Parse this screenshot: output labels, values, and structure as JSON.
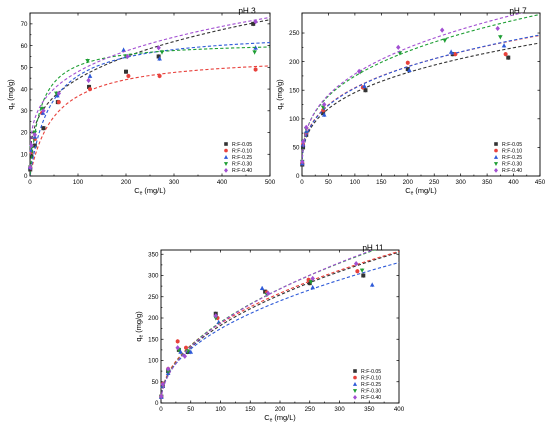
{
  "colors": {
    "R:F-0.05": "#333333",
    "R:F-0.10": "#e8413c",
    "R:F-0.25": "#2e5ad8",
    "R:F-0.30": "#1e9e34",
    "R:F-0.40": "#a24fd2"
  },
  "marker_shapes": {
    "R:F-0.05": "square",
    "R:F-0.10": "circle",
    "R:F-0.25": "triangle-up",
    "R:F-0.30": "triangle-down",
    "R:F-0.40": "diamond"
  },
  "chart_data": [
    {
      "type": "scatter",
      "title": "pH 3",
      "xlabel": {
        "main": "C",
        "sub": "e",
        "unit": " (mg/L)"
      },
      "ylabel": {
        "main": "q",
        "sub": "e",
        "unit": " (mg/g)"
      },
      "xlim": [
        0,
        500
      ],
      "ylim": [
        0,
        75
      ],
      "xticks": [
        0,
        100,
        200,
        300,
        400,
        500
      ],
      "yticks": [
        0,
        10,
        20,
        30,
        40,
        50,
        60,
        70
      ],
      "legend_position": "bottom-right",
      "fit_lines": "dashed",
      "series": [
        {
          "name": "R:F-0.05",
          "x": [
            0.5,
            3,
            10,
            28,
            58,
            123,
            200,
            268,
            465
          ],
          "y": [
            3,
            9,
            14,
            22,
            34,
            41,
            48,
            55,
            70
          ],
          "fit": {
            "model": "freundlich",
            "k": 11.5,
            "n": 0.295
          }
        },
        {
          "name": "R:F-0.10",
          "x": [
            0.5,
            3,
            10,
            25,
            60,
            125,
            205,
            270,
            470
          ],
          "y": [
            4,
            11,
            17,
            29,
            34,
            40,
            46,
            46,
            49
          ],
          "fit": {
            "model": "langmuir",
            "qm": 56,
            "kl": 0.019
          }
        },
        {
          "name": "R:F-0.25",
          "x": [
            0.5,
            3,
            10,
            27,
            57,
            125,
            195,
            270,
            470
          ],
          "y": [
            4,
            12,
            18,
            29,
            37,
            46,
            58,
            54,
            59
          ],
          "fit": {
            "model": "langmuir",
            "qm": 67,
            "kl": 0.022
          }
        },
        {
          "name": "R:F-0.30",
          "x": [
            0.5,
            3,
            10,
            25,
            55,
            120,
            200,
            275,
            468
          ],
          "y": [
            4,
            13,
            20,
            31,
            38,
            53,
            55,
            57,
            57
          ],
          "fit": {
            "model": "langmuir",
            "qm": 62,
            "kl": 0.045
          }
        },
        {
          "name": "R:F-0.40",
          "x": [
            0.5,
            3,
            10,
            28,
            60,
            122,
            203,
            268,
            470
          ],
          "y": [
            4,
            14,
            19,
            30,
            38,
            44,
            55,
            59,
            71
          ],
          "fit": {
            "model": "freundlich",
            "k": 14.5,
            "n": 0.26
          }
        }
      ]
    },
    {
      "type": "scatter",
      "title": "pH 7",
      "xlabel": {
        "main": "C",
        "sub": "e",
        "unit": " (mg/L)"
      },
      "ylabel": {
        "main": "q",
        "sub": "e",
        "unit": " (mg/g)"
      },
      "xlim": [
        0,
        450
      ],
      "ylim": [
        0,
        285
      ],
      "xticks": [
        0,
        50,
        100,
        150,
        200,
        250,
        300,
        350,
        400,
        450
      ],
      "yticks": [
        0,
        50,
        100,
        150,
        200,
        250
      ],
      "legend_position": "bottom-right",
      "fit_lines": "dashed",
      "series": [
        {
          "name": "R:F-0.05",
          "x": [
            0.5,
            2,
            8,
            40,
            120,
            200,
            285,
            390
          ],
          "y": [
            20,
            50,
            72,
            110,
            150,
            187,
            213,
            207
          ],
          "fit": {
            "model": "freundlich",
            "k": 35,
            "n": 0.31
          }
        },
        {
          "name": "R:F-0.10",
          "x": [
            0.5,
            2,
            8,
            40,
            115,
            200,
            290,
            385
          ],
          "y": [
            22,
            55,
            75,
            115,
            155,
            198,
            213,
            213
          ],
          "fit": {
            "model": "freundlich",
            "k": 37,
            "n": 0.31
          }
        },
        {
          "name": "R:F-0.25",
          "x": [
            0.5,
            2,
            8,
            42,
            118,
            203,
            282,
            382
          ],
          "y": [
            22,
            55,
            78,
            107,
            157,
            185,
            217,
            228
          ],
          "fit": {
            "model": "freundlich",
            "k": 36,
            "n": 0.315
          }
        },
        {
          "name": "R:F-0.30",
          "x": [
            0.5,
            2,
            8,
            40,
            110,
            185,
            270,
            375
          ],
          "y": [
            25,
            60,
            82,
            120,
            182,
            215,
            237,
            243
          ],
          "fit": {
            "model": "freundlich",
            "k": 40,
            "n": 0.32
          }
        },
        {
          "name": "R:F-0.40",
          "x": [
            0.5,
            2,
            8,
            42,
            108,
            182,
            265,
            370
          ],
          "y": [
            25,
            60,
            85,
            125,
            183,
            225,
            255,
            258
          ],
          "fit": {
            "model": "freundlich",
            "k": 39,
            "n": 0.33
          }
        }
      ]
    },
    {
      "type": "scatter",
      "title": "pH 11",
      "xlabel": {
        "main": "C",
        "sub": "e",
        "unit": " (mg/L)"
      },
      "ylabel": {
        "main": "q",
        "sub": "e",
        "unit": " (mg/g)"
      },
      "xlim": [
        0,
        400
      ],
      "ylim": [
        0,
        360
      ],
      "xticks": [
        0,
        50,
        100,
        150,
        200,
        250,
        300,
        350,
        400
      ],
      "yticks": [
        0,
        50,
        100,
        150,
        200,
        250,
        300,
        350
      ],
      "legend_position": "bottom-right",
      "fit_lines": "dashed",
      "series": [
        {
          "name": "R:F-0.05",
          "x": [
            0.5,
            3,
            12,
            30,
            45,
            92,
            175,
            250,
            340
          ],
          "y": [
            15,
            40,
            75,
            125,
            120,
            210,
            262,
            282,
            300
          ],
          "fit": {
            "model": "freundlich",
            "k": 20,
            "n": 0.48
          }
        },
        {
          "name": "R:F-0.10",
          "x": [
            0.5,
            3,
            12,
            28,
            42,
            95,
            178,
            248,
            330
          ],
          "y": [
            16,
            45,
            80,
            145,
            130,
            200,
            260,
            290,
            310
          ],
          "fit": {
            "model": "freundlich",
            "k": 22,
            "n": 0.465
          }
        },
        {
          "name": "R:F-0.25",
          "x": [
            0.5,
            3,
            12,
            33,
            50,
            97,
            170,
            255,
            355
          ],
          "y": [
            14,
            40,
            70,
            120,
            120,
            190,
            270,
            272,
            278
          ],
          "fit": {
            "model": "freundlich",
            "k": 21,
            "n": 0.46
          }
        },
        {
          "name": "R:F-0.30",
          "x": [
            0.5,
            3,
            12,
            30,
            45,
            92,
            178,
            252,
            338
          ],
          "y": [
            15,
            42,
            75,
            125,
            122,
            200,
            255,
            285,
            312
          ],
          "fit": {
            "model": "freundlich",
            "k": 19,
            "n": 0.5
          }
        },
        {
          "name": "R:F-0.40",
          "x": [
            0.5,
            3,
            12,
            28,
            40,
            92,
            180,
            255,
            328
          ],
          "y": [
            16,
            44,
            80,
            130,
            110,
            205,
            258,
            293,
            328
          ],
          "fit": {
            "model": "freundlich",
            "k": 18,
            "n": 0.51
          }
        }
      ]
    }
  ]
}
